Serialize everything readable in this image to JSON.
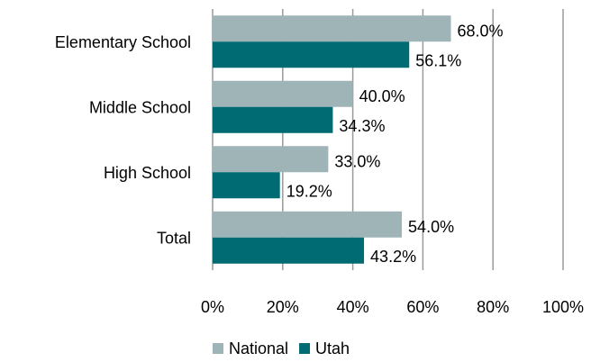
{
  "chart_data": {
    "type": "bar",
    "orientation": "horizontal",
    "categories": [
      "Elementary School",
      "Middle School",
      "High School",
      "Total"
    ],
    "series": [
      {
        "name": "National",
        "color": "#9fb4b7",
        "values": [
          68.0,
          40.0,
          33.0,
          54.0
        ],
        "value_labels": [
          "68.0%",
          "40.0%",
          "33.0%",
          "54.0%"
        ]
      },
      {
        "name": "Utah",
        "color": "#006b73",
        "values": [
          56.1,
          34.3,
          19.2,
          43.2
        ],
        "value_labels": [
          "56.1%",
          "34.3%",
          "19.2%",
          "43.2%"
        ]
      }
    ],
    "xlim": [
      0,
      100
    ],
    "xticks": [
      {
        "value": 0,
        "label": "0%"
      },
      {
        "value": 20,
        "label": "20%"
      },
      {
        "value": 40,
        "label": "40%"
      },
      {
        "value": 60,
        "label": "60%"
      },
      {
        "value": 80,
        "label": "80%"
      },
      {
        "value": 100,
        "label": "100%"
      }
    ],
    "grid": true,
    "legend": "bottom"
  }
}
